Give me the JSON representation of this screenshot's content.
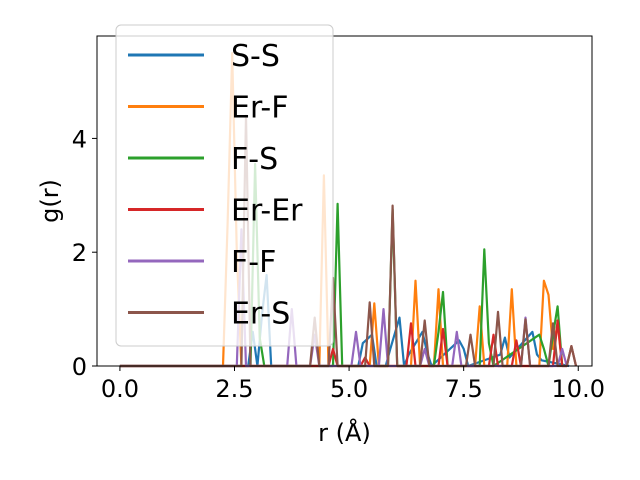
{
  "chart_data": {
    "type": "line",
    "xlabel": "r (Å)",
    "ylabel": "g(r)",
    "xlim": [
      -0.5,
      10.3
    ],
    "ylim": [
      0,
      5.8
    ],
    "xticks": [
      0.0,
      2.5,
      5.0,
      7.5,
      10.0
    ],
    "xtick_labels": [
      "0.0",
      "2.5",
      "5.0",
      "7.5",
      "10.0"
    ],
    "yticks": [
      0,
      2,
      4
    ],
    "ytick_labels": [
      "0",
      "2",
      "4"
    ],
    "grid": false,
    "legend_position": "top-left",
    "series": [
      {
        "name": "S-S",
        "color": "#1f77b4",
        "x": [
          0.0,
          2.8,
          2.9,
          3.0,
          3.1,
          3.2,
          3.3,
          5.2,
          5.3,
          5.5,
          5.6,
          5.8,
          5.9,
          6.1,
          6.2,
          6.3,
          6.6,
          6.7,
          6.8,
          7.4,
          7.5,
          7.6,
          8.3,
          8.4,
          8.5,
          9.0,
          9.1,
          9.2,
          9.8
        ],
        "y": [
          0,
          0,
          0.6,
          0,
          0.9,
          1.6,
          0,
          0,
          0.4,
          0.55,
          0,
          0,
          0.3,
          0.85,
          0,
          0.2,
          0.6,
          0.25,
          0,
          0.45,
          0.3,
          0,
          0.2,
          0.5,
          0.15,
          0.6,
          0.2,
          0.1,
          0
        ]
      },
      {
        "name": "Er-F",
        "color": "#ff7f0e",
        "x": [
          0.0,
          2.25,
          2.35,
          2.45,
          2.55,
          2.65,
          4.35,
          4.45,
          4.55,
          5.45,
          5.55,
          5.65,
          6.35,
          6.45,
          6.55,
          6.85,
          6.95,
          7.05,
          7.75,
          7.85,
          7.95,
          8.45,
          8.55,
          8.65,
          9.15,
          9.25,
          9.35,
          9.45,
          9.55,
          9.65
        ],
        "y": [
          0,
          0,
          2.5,
          5.5,
          2.0,
          0,
          0,
          3.35,
          0,
          0,
          1.1,
          0,
          0,
          1.5,
          0,
          0,
          1.35,
          0,
          0,
          1.05,
          0,
          0,
          1.35,
          0,
          0,
          1.5,
          1.25,
          0.3,
          0.75,
          0
        ]
      },
      {
        "name": "F-S",
        "color": "#2ca02c",
        "x": [
          0.0,
          2.85,
          2.95,
          3.05,
          3.15,
          4.65,
          4.75,
          4.85,
          5.85,
          5.95,
          6.05,
          6.85,
          6.95,
          7.05,
          7.15,
          7.85,
          7.95,
          8.05,
          8.15,
          9.15,
          9.25,
          9.35,
          9.45,
          9.55,
          9.65
        ],
        "y": [
          0,
          0,
          3.55,
          0.5,
          0,
          0,
          2.85,
          0,
          0,
          2.75,
          0,
          0,
          0.6,
          1.3,
          0,
          0,
          2.05,
          0.4,
          0,
          0.55,
          0.3,
          0,
          0.55,
          1.05,
          0
        ]
      },
      {
        "name": "Er-Er",
        "color": "#d62728",
        "x": [
          0.0,
          4.55,
          4.65,
          4.75,
          5.25,
          5.35,
          5.45,
          6.25,
          6.35,
          6.45,
          6.95,
          7.05,
          7.15,
          8.05,
          8.15,
          8.25,
          8.55,
          8.65,
          8.75,
          9.45,
          9.55,
          9.65,
          9.75,
          9.85,
          9.95
        ],
        "y": [
          0,
          0,
          0.3,
          0,
          0,
          0.15,
          0,
          0,
          0.75,
          0,
          0,
          0.65,
          0,
          0,
          0.55,
          0,
          0,
          0.45,
          0,
          0,
          0.8,
          0,
          0,
          0.35,
          0
        ]
      },
      {
        "name": "F-F",
        "color": "#9467bd",
        "x": [
          0.0,
          2.55,
          2.65,
          2.75,
          3.65,
          3.75,
          3.85,
          4.15,
          4.25,
          4.35,
          5.05,
          5.15,
          5.25,
          5.65,
          5.75,
          5.85,
          6.55,
          6.65,
          6.75,
          7.25,
          7.35,
          7.45,
          8.75,
          8.85,
          8.95,
          9.55,
          9.65,
          9.75
        ],
        "y": [
          0,
          0,
          2.4,
          0,
          0,
          1.0,
          0,
          0,
          0.55,
          0,
          0,
          0.6,
          0,
          0,
          1.0,
          0,
          0,
          0.3,
          0,
          0,
          0.6,
          0,
          0,
          0.85,
          0,
          0,
          0.3,
          0
        ]
      },
      {
        "name": "Er-S",
        "color": "#8c564b",
        "x": [
          0.0,
          2.65,
          2.75,
          2.85,
          4.15,
          4.25,
          4.35,
          4.55,
          4.65,
          4.75,
          5.35,
          5.45,
          5.55,
          5.85,
          5.95,
          6.05,
          6.55,
          6.65,
          6.75,
          7.55,
          7.65,
          7.75,
          8.15,
          8.25,
          8.35,
          8.75,
          8.85,
          8.95,
          9.35,
          9.45,
          9.55,
          9.75,
          9.85,
          9.95
        ],
        "y": [
          0,
          0,
          4.4,
          0,
          0,
          0.85,
          0,
          0,
          1.55,
          0,
          0,
          1.12,
          0,
          0,
          2.82,
          0,
          0,
          0.8,
          0,
          0,
          0.55,
          0,
          0,
          0.95,
          0,
          0,
          0.82,
          0,
          0,
          0.75,
          0,
          0,
          0.35,
          0
        ]
      }
    ]
  }
}
